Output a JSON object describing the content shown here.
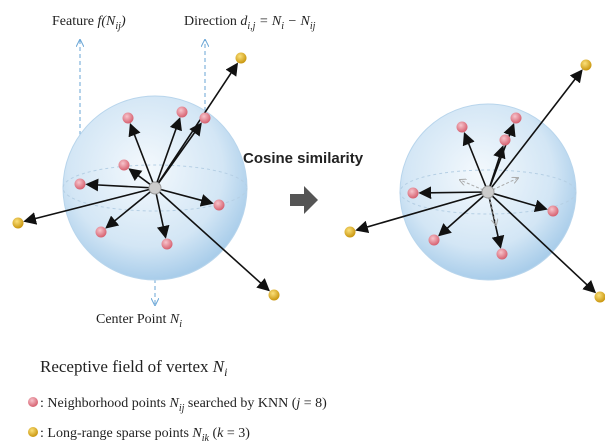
{
  "feature_label": {
    "word": "Feature ",
    "fn": "f",
    "open": "(N",
    "sub": "ij",
    "close": ")"
  },
  "direction_label": {
    "word": "Direction ",
    "d": "d",
    "d_sub": "i,j",
    "eq": " = N",
    "ni_sub": "i",
    "minus": " − N",
    "nij_sub": "ij"
  },
  "center_label": {
    "word": "Center Point ",
    "n": "N",
    "sub": "i"
  },
  "operation_label": "Cosine similarity",
  "caption": {
    "text": "Receptive field of vertex ",
    "n": "N",
    "sub": "i"
  },
  "legend": [
    {
      "text": ": Neighborhood points ",
      "n": "N",
      "sub": "ij",
      "mid": " searched by KNN (",
      "var": "j",
      "end": " = 8)"
    },
    {
      "text": ": Long-range sparse points ",
      "n": "N",
      "sub": "ik",
      "mid": " (",
      "var": "k",
      "end": " = 3)"
    }
  ]
}
